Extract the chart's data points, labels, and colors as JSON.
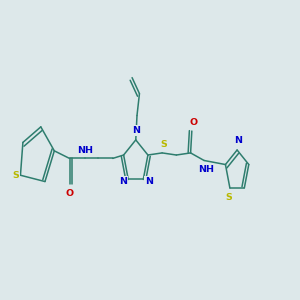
{
  "background_color": "#dde8ea",
  "bond_color": "#2e7d6e",
  "atom_colors": {
    "N": "#0000cc",
    "S": "#b8b800",
    "O": "#cc0000",
    "C": "#2e7d6e"
  },
  "lw": 1.1,
  "fs": 6.8,
  "xlim": [
    0,
    12
  ],
  "ylim": [
    2,
    9
  ]
}
